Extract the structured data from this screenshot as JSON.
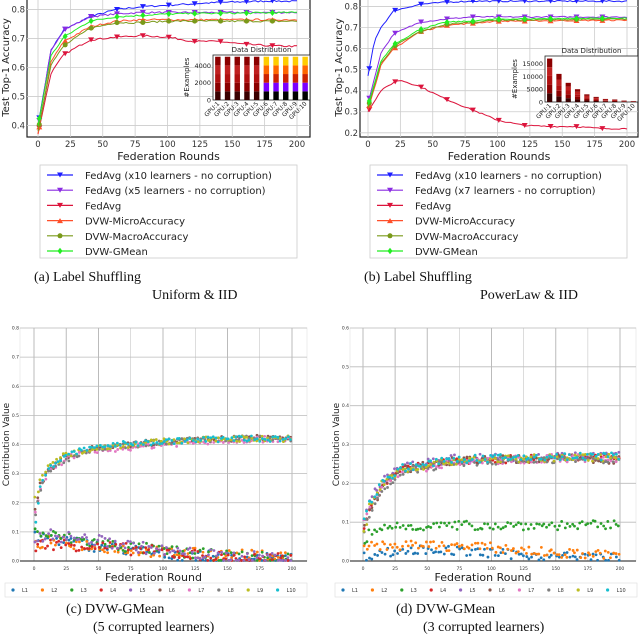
{
  "chart_data": [
    {
      "id": "a",
      "type": "line",
      "caption": "(a) Label Shuffling",
      "caption2": "Uniform & IID",
      "xlabel": "Federation Rounds",
      "ylabel": "Test Top-1 Accuracy",
      "xlim": [
        0,
        200
      ],
      "ylim": [
        0.36,
        0.84
      ],
      "xticks": [
        0,
        25,
        50,
        75,
        100,
        125,
        150,
        175,
        200
      ],
      "yticks": [
        0.4,
        0.5,
        0.6,
        0.7,
        0.8
      ],
      "grid": true,
      "legend": "below",
      "series": [
        {
          "name": "FedAvg (x10 learners - no corruption)",
          "color": "#1f1fff",
          "marker": "v",
          "x": [
            0,
            10,
            20,
            40,
            60,
            80,
            100,
            120,
            140,
            160,
            180,
            200
          ],
          "y": [
            0.4,
            0.66,
            0.73,
            0.775,
            0.8,
            0.81,
            0.815,
            0.82,
            0.825,
            0.827,
            0.83,
            0.828
          ]
        },
        {
          "name": "FedAvg (x5 learners - no corruption)",
          "color": "#8a2be2",
          "marker": "v",
          "x": [
            0,
            10,
            20,
            40,
            60,
            80,
            100,
            140,
            200
          ],
          "y": [
            0.39,
            0.66,
            0.73,
            0.775,
            0.785,
            0.79,
            0.79,
            0.79,
            0.79
          ]
        },
        {
          "name": "FedAvg",
          "color": "#dc143c",
          "marker": "v",
          "x": [
            0,
            10,
            20,
            40,
            60,
            80,
            100,
            120,
            140,
            160,
            180,
            200
          ],
          "y": [
            0.37,
            0.58,
            0.645,
            0.695,
            0.705,
            0.71,
            0.705,
            0.69,
            0.69,
            0.68,
            0.675,
            0.673
          ]
        },
        {
          "name": "DVW-MicroAccuracy",
          "color": "#ff4f2a",
          "marker": "^",
          "x": [
            0,
            10,
            20,
            40,
            60,
            80,
            100,
            200
          ],
          "y": [
            0.37,
            0.62,
            0.69,
            0.74,
            0.76,
            0.765,
            0.765,
            0.765
          ]
        },
        {
          "name": "DVW-MacroAccuracy",
          "color": "#7a9a1a",
          "marker": "o",
          "x": [
            0,
            10,
            20,
            40,
            60,
            80,
            100,
            200
          ],
          "y": [
            0.38,
            0.61,
            0.675,
            0.735,
            0.755,
            0.755,
            0.76,
            0.76
          ]
        },
        {
          "name": "DVW-GMean",
          "color": "#22ee22",
          "marker": "d",
          "x": [
            0,
            10,
            20,
            40,
            60,
            80,
            100,
            200
          ],
          "y": [
            0.4,
            0.64,
            0.705,
            0.76,
            0.775,
            0.78,
            0.785,
            0.79
          ]
        }
      ],
      "inset": {
        "title": "Data Distribution",
        "ylabel": "#Examples",
        "categories": [
          "GPU:1",
          "GPU:2",
          "GPU:3",
          "GPU:4",
          "GPU:5",
          "GPU:6",
          "GPU:7",
          "GPU:8",
          "GPU:9",
          "GPU:10"
        ],
        "values": [
          5000,
          5000,
          5000,
          5000,
          5000,
          5000,
          5000,
          5000,
          5000,
          5000
        ],
        "yticks": [
          0,
          2000,
          4000
        ],
        "ylim": [
          0,
          5200
        ]
      }
    },
    {
      "id": "b",
      "type": "line",
      "caption": "(b) Label Shuffling",
      "caption2": "PowerLaw & IID",
      "xlabel": "Federation Rounds",
      "ylabel": "Test Top-1 Accuracy",
      "xlim": [
        0,
        200
      ],
      "ylim": [
        0.18,
        0.84
      ],
      "xticks": [
        0,
        25,
        50,
        75,
        100,
        125,
        150,
        175,
        200
      ],
      "yticks": [
        0.2,
        0.3,
        0.4,
        0.5,
        0.6,
        0.7,
        0.8
      ],
      "grid": true,
      "legend": "below",
      "series": [
        {
          "name": "FedAvg (x10 learners - no corruption)",
          "color": "#1f1fff",
          "marker": "v",
          "x": [
            0,
            5,
            10,
            20,
            40,
            60,
            80,
            200
          ],
          "y": [
            0.47,
            0.64,
            0.7,
            0.78,
            0.81,
            0.82,
            0.825,
            0.825
          ]
        },
        {
          "name": "FedAvg (x7 learners - no corruption)",
          "color": "#8a2be2",
          "marker": "v",
          "x": [
            0,
            10,
            20,
            40,
            60,
            80,
            200
          ],
          "y": [
            0.34,
            0.58,
            0.67,
            0.725,
            0.74,
            0.75,
            0.75
          ]
        },
        {
          "name": "FedAvg",
          "color": "#dc143c",
          "marker": "v",
          "x": [
            0,
            10,
            20,
            25,
            40,
            60,
            80,
            100,
            120,
            140,
            160,
            180,
            200
          ],
          "y": [
            0.3,
            0.4,
            0.44,
            0.45,
            0.42,
            0.36,
            0.31,
            0.26,
            0.235,
            0.23,
            0.23,
            0.22,
            0.22
          ]
        },
        {
          "name": "DVW-MicroAccuracy",
          "color": "#ff4f2a",
          "marker": "^",
          "x": [
            0,
            10,
            20,
            40,
            60,
            80,
            100,
            200
          ],
          "y": [
            0.31,
            0.52,
            0.6,
            0.68,
            0.71,
            0.72,
            0.73,
            0.735
          ]
        },
        {
          "name": "DVW-MacroAccuracy",
          "color": "#7a9a1a",
          "marker": "o",
          "x": [
            0,
            10,
            20,
            40,
            60,
            80,
            100,
            200
          ],
          "y": [
            0.32,
            0.53,
            0.61,
            0.68,
            0.715,
            0.725,
            0.735,
            0.74
          ]
        },
        {
          "name": "DVW-GMean",
          "color": "#22ee22",
          "marker": "d",
          "x": [
            0,
            10,
            20,
            40,
            60,
            80,
            100,
            200
          ],
          "y": [
            0.33,
            0.54,
            0.62,
            0.69,
            0.725,
            0.73,
            0.74,
            0.745
          ]
        }
      ],
      "inset": {
        "title": "Data Distribution",
        "ylabel": "#Examples",
        "categories": [
          "GPU:1",
          "GPU:2",
          "GPU:3",
          "GPU:4",
          "GPU:5",
          "GPU:6",
          "GPU:7",
          "GPU:8",
          "GPU:9",
          "GPU:10"
        ],
        "values": [
          17000,
          11000,
          7500,
          5000,
          3000,
          2000,
          1200,
          1000,
          600,
          400
        ],
        "yticks": [
          0,
          5000,
          10000,
          15000
        ],
        "ylim": [
          0,
          18000
        ]
      }
    },
    {
      "id": "c",
      "type": "scatter",
      "caption": "(c) DVW-GMean",
      "caption2": "(5 corrupted learners)",
      "xlabel": "Federation Round",
      "ylabel": "Contribution Value",
      "xlim": [
        0,
        200
      ],
      "ylim": [
        0,
        0.8
      ],
      "xticks": [
        0,
        25,
        50,
        75,
        100,
        125,
        150,
        175,
        200
      ],
      "yticks": [
        0.0,
        0.1,
        0.2,
        0.3,
        0.4,
        0.5,
        0.6,
        0.7,
        0.8
      ],
      "grid": true,
      "legend": "bottom",
      "series": [
        {
          "name": "L1",
          "color": "#1f77b4",
          "x": [
            0,
            10,
            50,
            100,
            150,
            200
          ],
          "y": [
            0.08,
            0.08,
            0.05,
            0.025,
            0.01,
            0.005
          ]
        },
        {
          "name": "L2",
          "color": "#ff7f0e",
          "x": [
            0,
            10,
            50,
            100,
            150,
            200
          ],
          "y": [
            0.05,
            0.07,
            0.05,
            0.03,
            0.02,
            0.015
          ]
        },
        {
          "name": "L3",
          "color": "#2ca02c",
          "x": [
            0,
            10,
            50,
            100,
            150,
            200
          ],
          "y": [
            0.1,
            0.09,
            0.06,
            0.035,
            0.015,
            0.008
          ]
        },
        {
          "name": "L4",
          "color": "#d62728",
          "x": [
            0,
            10,
            50,
            100,
            150,
            200
          ],
          "y": [
            0.05,
            0.06,
            0.05,
            0.03,
            0.01,
            0.005
          ]
        },
        {
          "name": "L5",
          "color": "#9467bd",
          "x": [
            0,
            10,
            50,
            100,
            150,
            200
          ],
          "y": [
            0.08,
            0.09,
            0.07,
            0.035,
            0.015,
            0.01
          ]
        },
        {
          "name": "L6",
          "color": "#8c564b",
          "x": [
            0,
            5,
            10,
            25,
            50,
            100,
            150,
            200
          ],
          "y": [
            0.15,
            0.26,
            0.31,
            0.36,
            0.39,
            0.41,
            0.42,
            0.425
          ]
        },
        {
          "name": "L7",
          "color": "#e377c2",
          "x": [
            0,
            5,
            10,
            25,
            50,
            100,
            150,
            200
          ],
          "y": [
            0.14,
            0.24,
            0.3,
            0.355,
            0.38,
            0.4,
            0.415,
            0.42
          ]
        },
        {
          "name": "L8",
          "color": "#7f7f7f",
          "x": [
            0,
            5,
            10,
            25,
            50,
            100,
            150,
            200
          ],
          "y": [
            0.13,
            0.24,
            0.3,
            0.35,
            0.385,
            0.41,
            0.42,
            0.42
          ]
        },
        {
          "name": "L9",
          "color": "#bcbd22",
          "x": [
            0,
            5,
            10,
            25,
            50,
            100,
            150,
            200
          ],
          "y": [
            0.2,
            0.27,
            0.32,
            0.365,
            0.39,
            0.41,
            0.42,
            0.42
          ]
        },
        {
          "name": "L10",
          "color": "#17becf",
          "x": [
            0,
            5,
            10,
            25,
            50,
            100,
            150,
            200
          ],
          "y": [
            0.1,
            0.25,
            0.31,
            0.365,
            0.395,
            0.41,
            0.42,
            0.42
          ]
        }
      ]
    },
    {
      "id": "d",
      "type": "scatter",
      "caption": "(d) DVW-GMean",
      "caption2": "(3 corrupted learners)",
      "xlabel": "Federation Round",
      "ylabel": "Contribution Value",
      "xlim": [
        0,
        200
      ],
      "ylim": [
        0,
        0.6
      ],
      "xticks": [
        0,
        25,
        50,
        75,
        100,
        125,
        150,
        175,
        200
      ],
      "yticks": [
        0.0,
        0.1,
        0.2,
        0.3,
        0.4,
        0.5,
        0.6
      ],
      "grid": true,
      "legend": "bottom",
      "series": [
        {
          "name": "L1",
          "color": "#1f77b4",
          "x": [
            0,
            10,
            50,
            100,
            150,
            200
          ],
          "y": [
            0.01,
            0.02,
            0.03,
            0.02,
            0.012,
            0.008
          ]
        },
        {
          "name": "L2",
          "color": "#ff7f0e",
          "x": [
            0,
            10,
            50,
            100,
            150,
            200
          ],
          "y": [
            0.03,
            0.04,
            0.04,
            0.035,
            0.02,
            0.015
          ]
        },
        {
          "name": "L3",
          "color": "#2ca02c",
          "x": [
            0,
            5,
            20,
            50,
            100,
            150,
            200
          ],
          "y": [
            0.03,
            0.07,
            0.09,
            0.09,
            0.092,
            0.092,
            0.092
          ]
        },
        {
          "name": "L4",
          "color": "#d62728",
          "x": [
            0,
            5,
            15,
            30,
            75,
            150,
            200
          ],
          "y": [
            0.06,
            0.14,
            0.2,
            0.235,
            0.26,
            0.265,
            0.268
          ]
        },
        {
          "name": "L5",
          "color": "#9467bd",
          "x": [
            0,
            5,
            15,
            30,
            75,
            150,
            200
          ],
          "y": [
            0.1,
            0.16,
            0.21,
            0.245,
            0.265,
            0.27,
            0.272
          ]
        },
        {
          "name": "L6",
          "color": "#8c564b",
          "x": [
            0,
            5,
            15,
            30,
            75,
            150,
            200
          ],
          "y": [
            0.08,
            0.13,
            0.19,
            0.235,
            0.26,
            0.265,
            0.26
          ]
        },
        {
          "name": "L7",
          "color": "#e377c2",
          "x": [
            0,
            5,
            15,
            30,
            75,
            150,
            200
          ],
          "y": [
            0.1,
            0.14,
            0.19,
            0.23,
            0.255,
            0.265,
            0.265
          ]
        },
        {
          "name": "L8",
          "color": "#7f7f7f",
          "x": [
            0,
            5,
            15,
            30,
            75,
            150,
            200
          ],
          "y": [
            0.07,
            0.12,
            0.18,
            0.23,
            0.255,
            0.262,
            0.26
          ]
        },
        {
          "name": "L9",
          "color": "#bcbd22",
          "x": [
            0,
            5,
            15,
            30,
            75,
            150,
            200
          ],
          "y": [
            0.05,
            0.14,
            0.2,
            0.235,
            0.26,
            0.265,
            0.268
          ]
        },
        {
          "name": "L10",
          "color": "#17becf",
          "x": [
            0,
            5,
            15,
            30,
            75,
            150,
            200
          ],
          "y": [
            0.11,
            0.15,
            0.2,
            0.24,
            0.262,
            0.268,
            0.27
          ]
        }
      ]
    }
  ]
}
